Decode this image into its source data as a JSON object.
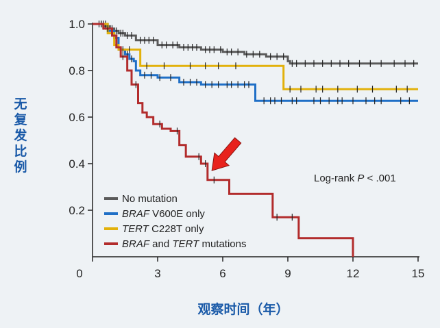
{
  "chart_data": {
    "type": "line",
    "subtype": "kaplan-meier-step",
    "xlabel": "观察时间（年）",
    "ylabel": "无复发比例",
    "x_ticks": [
      0,
      3,
      6,
      9,
      12,
      15
    ],
    "y_ticks": [
      0.2,
      0.4,
      0.6,
      0.8,
      1.0
    ],
    "y_tick_labels": [
      "0.2",
      "0.4",
      "0.6",
      "0.8",
      "1.0"
    ],
    "xlim": [
      0,
      15
    ],
    "ylim": [
      0,
      1.0
    ],
    "annotation": {
      "prefix": "Log-rank ",
      "italic": "P",
      "suffix": " < .001"
    },
    "arrow": {
      "color": "#e8221c",
      "points_to": {
        "x": 5.5,
        "y": 0.37
      },
      "from": {
        "x": 6.7,
        "y": 0.5
      }
    },
    "legend_position": "bottom-left",
    "series": [
      {
        "name": "No mutation",
        "legend_italic": "",
        "legend_rest": "No mutation",
        "color": "#5a5a5a",
        "steps": [
          [
            0,
            1.0
          ],
          [
            0.5,
            0.99
          ],
          [
            0.8,
            0.98
          ],
          [
            1.0,
            0.97
          ],
          [
            1.2,
            0.96
          ],
          [
            1.5,
            0.95
          ],
          [
            2.0,
            0.93
          ],
          [
            3.0,
            0.91
          ],
          [
            4.0,
            0.9
          ],
          [
            5.0,
            0.89
          ],
          [
            6.0,
            0.88
          ],
          [
            7.0,
            0.87
          ],
          [
            8.0,
            0.86
          ],
          [
            9.0,
            0.84
          ],
          [
            9.1,
            0.83
          ],
          [
            15.0,
            0.83
          ]
        ],
        "censor": [
          0.3,
          0.4,
          0.5,
          0.6,
          0.7,
          0.9,
          1.1,
          1.3,
          1.4,
          1.6,
          1.8,
          2.2,
          2.4,
          2.6,
          2.8,
          3.2,
          3.4,
          3.7,
          3.9,
          4.2,
          4.4,
          4.6,
          4.8,
          5.2,
          5.4,
          5.6,
          5.9,
          6.2,
          6.4,
          6.7,
          7.1,
          7.4,
          7.7,
          8.2,
          8.5,
          8.8,
          9.2,
          9.4,
          9.8,
          10.2,
          10.6,
          11.0,
          11.4,
          11.8,
          12.3,
          12.8,
          13.3,
          13.9,
          14.4,
          14.8
        ]
      },
      {
        "name": "BRAF V600E only",
        "legend_italic": "BRAF",
        "legend_rest": " V600E only",
        "color": "#1f6fc6",
        "steps": [
          [
            0,
            1.0
          ],
          [
            0.7,
            0.97
          ],
          [
            1.0,
            0.94
          ],
          [
            1.2,
            0.89
          ],
          [
            1.5,
            0.87
          ],
          [
            1.7,
            0.85
          ],
          [
            1.9,
            0.84
          ],
          [
            2.0,
            0.8
          ],
          [
            2.2,
            0.78
          ],
          [
            3.0,
            0.77
          ],
          [
            4.0,
            0.75
          ],
          [
            5.0,
            0.74
          ],
          [
            7.0,
            0.74
          ],
          [
            7.5,
            0.67
          ],
          [
            15.0,
            0.67
          ]
        ],
        "censor": [
          0.4,
          0.6,
          1.1,
          1.3,
          1.6,
          1.8,
          2.4,
          2.7,
          3.1,
          3.6,
          4.2,
          4.5,
          4.8,
          5.2,
          5.5,
          5.8,
          6.2,
          6.4,
          6.7,
          7.0,
          7.2,
          7.9,
          8.2,
          8.4,
          8.7,
          9.2,
          9.4,
          10.2,
          10.5,
          10.9,
          11.3,
          11.5,
          12.0,
          12.6,
          13.0,
          13.3,
          14.2,
          14.6
        ]
      },
      {
        "name": "TERT C228T only",
        "legend_italic": "TERT",
        "legend_rest": " C228T only",
        "color": "#e2b10b",
        "steps": [
          [
            0,
            1.0
          ],
          [
            0.7,
            0.96
          ],
          [
            1.0,
            0.91
          ],
          [
            1.2,
            0.89
          ],
          [
            2.2,
            0.82
          ],
          [
            8.7,
            0.82
          ],
          [
            8.8,
            0.72
          ],
          [
            15.0,
            0.72
          ]
        ],
        "censor": [
          0.5,
          0.9,
          1.4,
          1.7,
          2.5,
          3.3,
          4.5,
          5.2,
          5.8,
          6.6,
          9.1,
          9.6,
          10.3,
          10.6,
          11.3,
          12.2,
          12.9,
          14.0,
          14.5
        ]
      },
      {
        "name": "BRAF and TERT mutations",
        "legend_italic": "BRAF",
        "legend_mid": " and ",
        "legend_italic2": "TERT",
        "legend_rest": " mutations",
        "color": "#b22c2c",
        "steps": [
          [
            0,
            1.0
          ],
          [
            0.5,
            0.98
          ],
          [
            0.9,
            0.95
          ],
          [
            1.1,
            0.9
          ],
          [
            1.3,
            0.86
          ],
          [
            1.6,
            0.8
          ],
          [
            1.8,
            0.74
          ],
          [
            2.1,
            0.66
          ],
          [
            2.3,
            0.62
          ],
          [
            2.5,
            0.6
          ],
          [
            2.8,
            0.57
          ],
          [
            3.2,
            0.55
          ],
          [
            3.6,
            0.54
          ],
          [
            4.0,
            0.48
          ],
          [
            4.3,
            0.43
          ],
          [
            4.7,
            0.43
          ],
          [
            5.0,
            0.4
          ],
          [
            5.3,
            0.33
          ],
          [
            6.0,
            0.33
          ],
          [
            6.3,
            0.27
          ],
          [
            8.0,
            0.27
          ],
          [
            8.3,
            0.17
          ],
          [
            9.1,
            0.17
          ],
          [
            9.5,
            0.08
          ],
          [
            12.0,
            0.08
          ],
          [
            12.0,
            0.0
          ]
        ],
        "censor": [
          0.7,
          1.4,
          2.0,
          3.1,
          3.9,
          4.9,
          5.2,
          5.6,
          8.5,
          9.2
        ]
      }
    ]
  }
}
